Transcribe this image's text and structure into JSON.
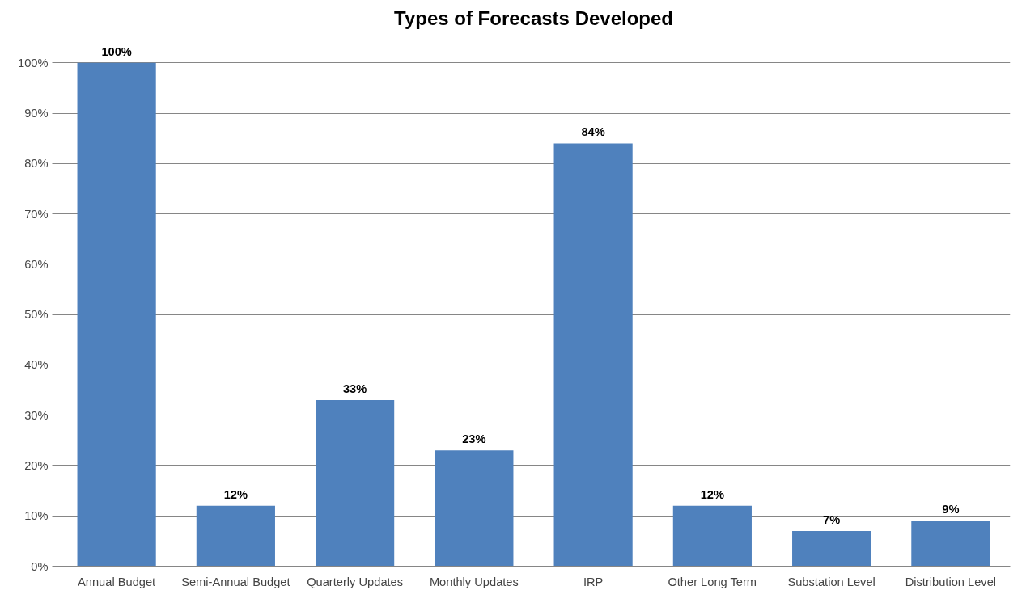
{
  "chart_data": {
    "type": "bar",
    "title": "Types of Forecasts Developed",
    "categories": [
      "Annual Budget",
      "Semi-Annual Budget",
      "Quarterly Updates",
      "Monthly Updates",
      "IRP",
      "Other Long Term",
      "Substation Level",
      "Distribution Level"
    ],
    "values": [
      100,
      12,
      33,
      23,
      84,
      12,
      7,
      9
    ],
    "value_labels": [
      "100%",
      "12%",
      "33%",
      "23%",
      "84%",
      "12%",
      "7%",
      "9%"
    ],
    "color": "#4f81bd",
    "ylim": [
      0,
      100
    ],
    "yticks": [
      {
        "value": 0,
        "label": "0%"
      },
      {
        "value": 10,
        "label": "10%"
      },
      {
        "value": 20,
        "label": "20%"
      },
      {
        "value": 30,
        "label": "30%"
      },
      {
        "value": 40,
        "label": "40%"
      },
      {
        "value": 50,
        "label": "50%"
      },
      {
        "value": 60,
        "label": "60%"
      },
      {
        "value": 70,
        "label": "70%"
      },
      {
        "value": 80,
        "label": "80%"
      },
      {
        "value": 90,
        "label": "90%"
      },
      {
        "value": 100,
        "label": "100%"
      }
    ],
    "grid": "y"
  }
}
